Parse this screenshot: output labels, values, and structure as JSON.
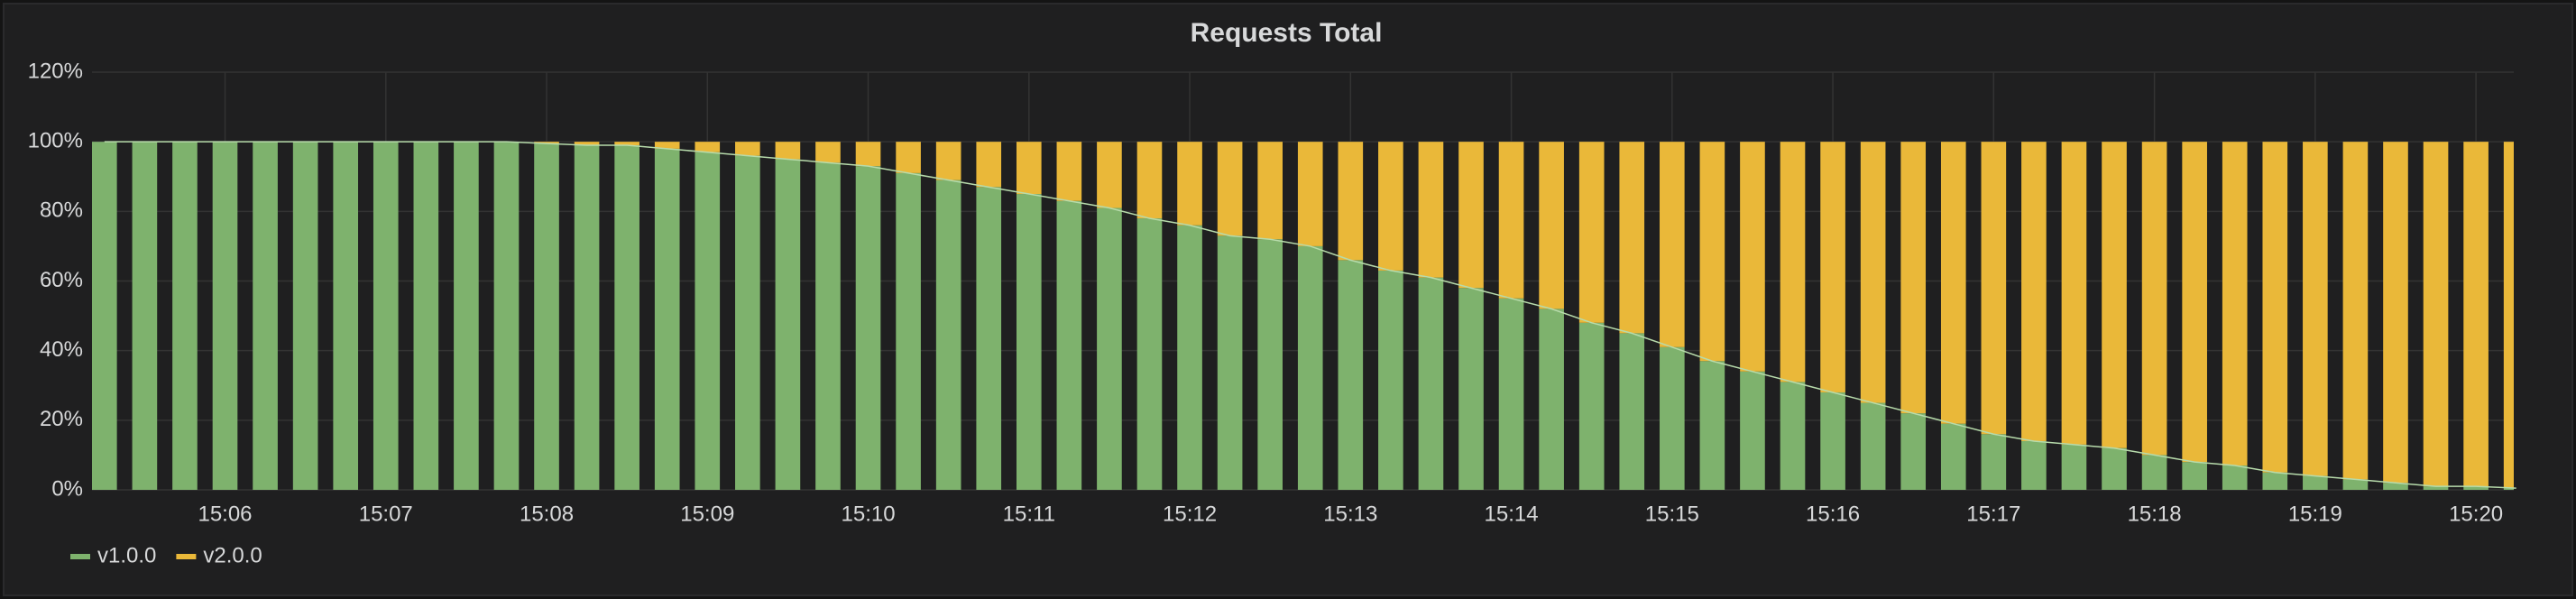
{
  "chart_data": {
    "type": "bar",
    "stacked": true,
    "title": "Requests Total",
    "categories": [
      null,
      null,
      null,
      "15:06",
      null,
      null,
      null,
      "15:07",
      null,
      null,
      null,
      "15:08",
      null,
      null,
      null,
      "15:09",
      null,
      null,
      null,
      "15:10",
      null,
      null,
      null,
      "15:11",
      null,
      null,
      null,
      "15:12",
      null,
      null,
      null,
      "15:13",
      null,
      null,
      null,
      "15:14",
      null,
      null,
      null,
      "15:15",
      null,
      null,
      null,
      "15:16",
      null,
      null,
      null,
      "15:17",
      null,
      null,
      null,
      "15:18",
      null,
      null,
      null,
      "15:19",
      null,
      null,
      null,
      "15:20",
      null
    ],
    "series": [
      {
        "name": "v1.0.0",
        "color": "#7eb26d",
        "values": [
          100,
          100,
          100,
          100,
          100,
          100,
          100,
          100,
          100,
          100,
          100,
          99.5,
          99,
          99,
          98,
          97,
          96,
          95,
          94,
          93,
          91,
          89,
          87,
          85,
          83,
          81,
          78,
          76,
          73,
          72,
          70,
          66,
          63,
          61,
          58,
          55,
          52,
          48,
          45,
          41,
          37,
          34,
          31,
          28,
          25,
          22,
          19,
          16,
          14,
          13,
          12,
          10,
          8,
          7,
          5,
          4,
          3,
          2,
          1,
          1,
          0.5
        ]
      },
      {
        "name": "v2.0.0",
        "color": "#eab839",
        "values": [
          0,
          0,
          0,
          0,
          0,
          0,
          0,
          0,
          0,
          0,
          0,
          0.5,
          1,
          1,
          2,
          3,
          4,
          5,
          6,
          7,
          9,
          11,
          13,
          15,
          17,
          19,
          22,
          24,
          27,
          28,
          30,
          34,
          37,
          39,
          42,
          45,
          48,
          52,
          55,
          59,
          63,
          66,
          69,
          72,
          75,
          78,
          81,
          84,
          86,
          87,
          88,
          90,
          92,
          93,
          95,
          96,
          97,
          98,
          99,
          99,
          99.5
        ]
      }
    ],
    "ylim": [
      0,
      120
    ],
    "yticks": [
      {
        "value": 0,
        "label": "0%"
      },
      {
        "value": 20,
        "label": "20%"
      },
      {
        "value": 40,
        "label": "40%"
      },
      {
        "value": 60,
        "label": "60%"
      },
      {
        "value": 80,
        "label": "80%"
      },
      {
        "value": 100,
        "label": "100%"
      },
      {
        "value": 120,
        "label": "120%"
      }
    ],
    "grid": true,
    "legend": "bottom-left"
  }
}
